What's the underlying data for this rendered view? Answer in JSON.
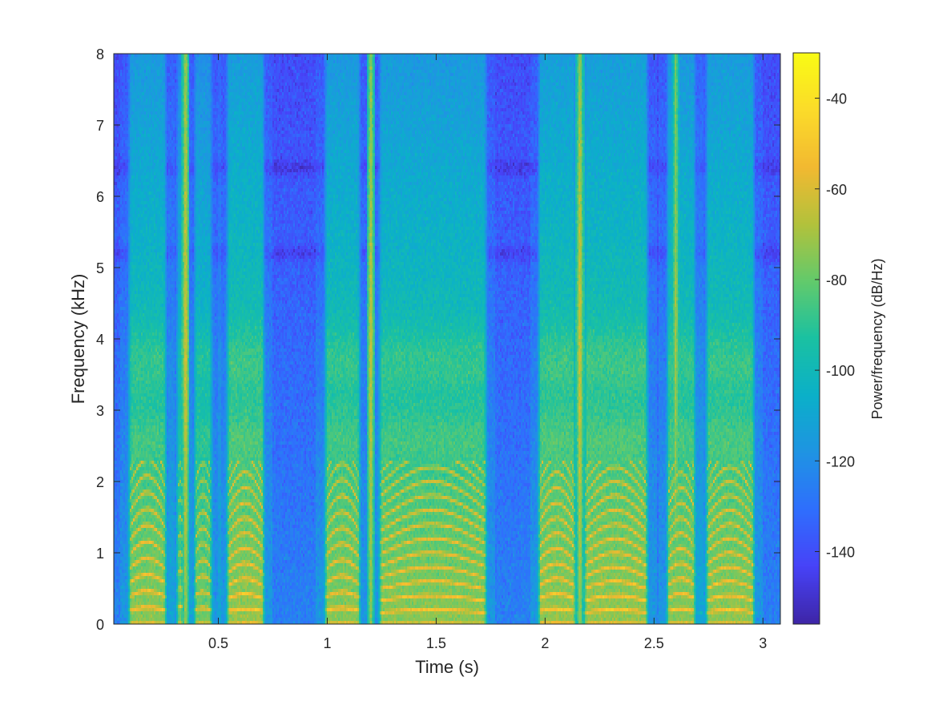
{
  "chart_data": {
    "type": "heatmap",
    "title": "",
    "xlabel": "Time (s)",
    "ylabel": "Frequency (kHz)",
    "colorbar_label": "Power/frequency (dB/Hz)",
    "xlim": [
      0.02,
      3.08
    ],
    "ylim": [
      0,
      8
    ],
    "clim": [
      -156,
      -30
    ],
    "xticks": [
      0.5,
      1,
      1.5,
      2,
      2.5,
      3
    ],
    "xtick_labels": [
      "0.5",
      "1",
      "1.5",
      "2",
      "2.5",
      "3"
    ],
    "yticks": [
      0,
      1,
      2,
      3,
      4,
      5,
      6,
      7,
      8
    ],
    "ytick_labels": [
      "0",
      "1",
      "2",
      "3",
      "4",
      "5",
      "6",
      "7",
      "8"
    ],
    "cticks": [
      -140,
      -120,
      -100,
      -80,
      -60,
      -40
    ],
    "ctick_labels": [
      "-140",
      "-120",
      "-100",
      "-80",
      "-60",
      "-40"
    ],
    "colormap": "parula",
    "colormap_stops": [
      "#3e26a8",
      "#4743f8",
      "#2f6ffd",
      "#1f94e3",
      "#0bb0c9",
      "#1ac1a2",
      "#62ca6c",
      "#b2c23c",
      "#f2b931",
      "#fbdb2a",
      "#f9fb15"
    ],
    "background_level_db": -125,
    "speech_segments": [
      {
        "start": 0.08,
        "end": 0.27,
        "f0_khz": 0.185,
        "level_db": -52
      },
      {
        "start": 0.3,
        "end": 0.35,
        "f0_khz": 0.2,
        "level_db": -58
      },
      {
        "start": 0.38,
        "end": 0.48,
        "f0_khz": 0.18,
        "level_db": -56
      },
      {
        "start": 0.53,
        "end": 0.72,
        "f0_khz": 0.17,
        "level_db": -50
      },
      {
        "start": 0.98,
        "end": 1.16,
        "f0_khz": 0.18,
        "level_db": -52
      },
      {
        "start": 1.23,
        "end": 1.74,
        "f0_khz": 0.16,
        "level_db": -52
      },
      {
        "start": 1.96,
        "end": 2.15,
        "f0_khz": 0.17,
        "level_db": -50
      },
      {
        "start": 2.17,
        "end": 2.48,
        "f0_khz": 0.16,
        "level_db": -50
      },
      {
        "start": 2.55,
        "end": 2.7,
        "f0_khz": 0.17,
        "level_db": -52
      },
      {
        "start": 2.73,
        "end": 2.97,
        "f0_khz": 0.16,
        "level_db": -51
      }
    ],
    "fricative_bursts": [
      {
        "time": 0.35,
        "level_db": -62
      },
      {
        "time": 1.2,
        "level_db": -64
      },
      {
        "time": 2.16,
        "level_db": -62
      },
      {
        "time": 2.6,
        "level_db": -70
      }
    ],
    "noise_bands_khz": [
      5.2,
      6.4
    ]
  }
}
